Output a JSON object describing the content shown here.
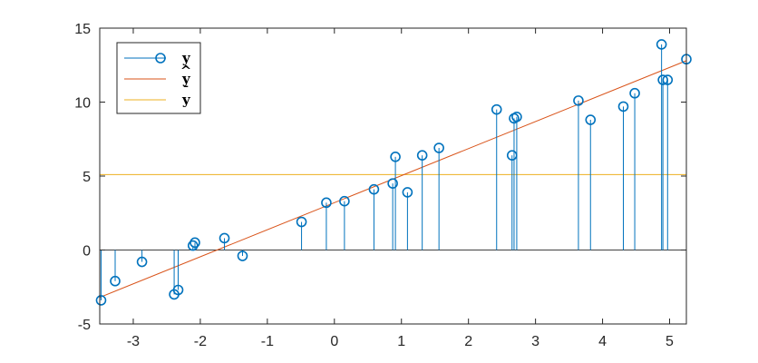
{
  "chart_data": {
    "type": "stem",
    "title": "",
    "xlabel": "",
    "ylabel": "",
    "xlim": [
      -3.5,
      5.25
    ],
    "ylim": [
      -5,
      15
    ],
    "xticks": [
      -3,
      -2,
      -1,
      0,
      1,
      2,
      3,
      4,
      5
    ],
    "yticks": [
      -5,
      0,
      5,
      10,
      15
    ],
    "grid": false,
    "legend": {
      "placement": "top-left",
      "entries": [
        {
          "label": "y",
          "accent": "",
          "style": "stem-marker"
        },
        {
          "label": "y",
          "accent": "^",
          "style": "line"
        },
        {
          "label": "y",
          "accent": "¯",
          "style": "line"
        }
      ]
    },
    "colors": {
      "stem": "#0072BD",
      "fit": "#D95319",
      "mean": "#EDB120",
      "axis": "#262626"
    },
    "series": [
      {
        "name": "y",
        "kind": "stem",
        "x": [
          -3.48,
          -3.27,
          -2.87,
          -2.39,
          -2.33,
          -2.11,
          -2.08,
          -1.64,
          -1.37,
          -0.49,
          -0.12,
          0.15,
          0.59,
          0.87,
          0.91,
          1.09,
          1.31,
          1.56,
          2.42,
          2.65,
          2.68,
          2.72,
          3.64,
          3.82,
          4.31,
          4.48,
          4.88,
          4.9,
          4.97,
          5.25
        ],
        "y": [
          -3.4,
          -2.1,
          -0.8,
          -3.0,
          -2.7,
          0.3,
          0.5,
          0.8,
          -0.4,
          1.9,
          3.2,
          3.3,
          4.1,
          4.5,
          6.3,
          3.9,
          6.4,
          6.9,
          9.5,
          6.4,
          8.9,
          9.0,
          10.1,
          8.8,
          9.7,
          10.6,
          13.9,
          11.5,
          11.5,
          12.9
        ]
      },
      {
        "name": "ŷ",
        "kind": "line",
        "x": [
          -3.5,
          5.25
        ],
        "y": [
          -3.2,
          12.8
        ]
      },
      {
        "name": "ȳ",
        "kind": "line",
        "x": [
          -3.5,
          5.25
        ],
        "y": [
          5.1,
          5.1
        ]
      }
    ]
  }
}
